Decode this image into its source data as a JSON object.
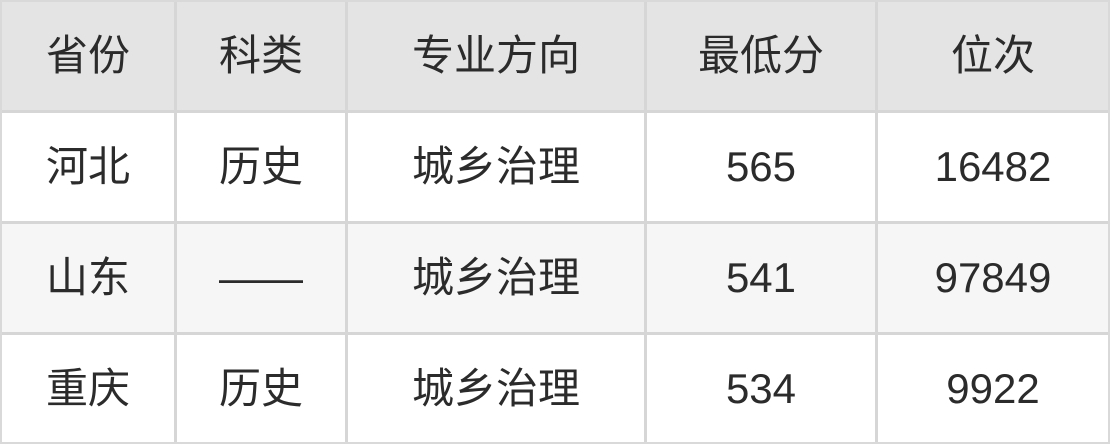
{
  "chart_data": {
    "type": "table",
    "title": "",
    "columns": [
      "省份",
      "科类",
      "专业方向",
      "最低分",
      "位次"
    ],
    "rows": [
      [
        "河北",
        "历史",
        "城乡治理",
        565,
        16482
      ],
      [
        "山东",
        "——",
        "城乡治理",
        541,
        97849
      ],
      [
        "重庆",
        "历史",
        "城乡治理",
        534,
        9922
      ]
    ],
    "layout_hints": {
      "grid": "on",
      "header_position": "top",
      "text_align": "center",
      "alternating_rows": true
    }
  },
  "colors": {
    "header_background": "#e4e4e4",
    "row_background": "#ffffff",
    "row_alt_background": "#f6f6f6",
    "grid_line": "#d6d6d6",
    "outer_border": "#d9d9d9",
    "text": "#2b2b2b"
  }
}
